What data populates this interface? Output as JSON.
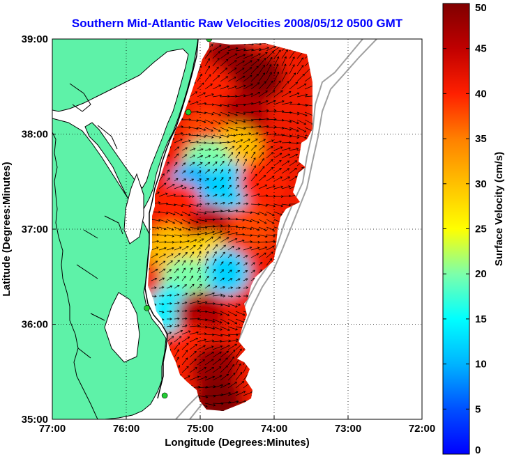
{
  "chart_data": {
    "type": "heatmap",
    "title": "Southern Mid-Atlantic Raw Velocities 2008/05/12 0500 GMT",
    "xlabel": "Longitude (Degrees:Minutes)",
    "ylabel": "Latitude (Degrees:Minutes)",
    "x_ticks": [
      {
        "value": -77,
        "label": "77:00"
      },
      {
        "value": -76,
        "label": "76:00"
      },
      {
        "value": -75,
        "label": "75:00"
      },
      {
        "value": -74,
        "label": "74:00"
      },
      {
        "value": -73,
        "label": "73:00"
      },
      {
        "value": -72,
        "label": "72:00"
      }
    ],
    "y_ticks": [
      {
        "value": 35,
        "label": "35:00"
      },
      {
        "value": 36,
        "label": "36:00"
      },
      {
        "value": 37,
        "label": "37:00"
      },
      {
        "value": 38,
        "label": "38:00"
      },
      {
        "value": 39,
        "label": "39:00"
      }
    ],
    "xlim": [
      -77,
      -72
    ],
    "ylim": [
      35,
      39
    ],
    "grid": true,
    "grid_style": "dotted",
    "colorbar": {
      "label": "Surface Velocity (cm/s)",
      "min": 0,
      "max": 50,
      "ticks": [
        0,
        5,
        10,
        15,
        20,
        25,
        30,
        35,
        40,
        45,
        50
      ],
      "colormap": "jet"
    },
    "land_color": "#5ef2a8",
    "station_color": "#22cc33",
    "stations": [
      {
        "lon": -74.88,
        "lat": 39.0
      },
      {
        "lon": -75.16,
        "lat": 38.23
      },
      {
        "lon": -75.72,
        "lat": 36.17
      },
      {
        "lon": -75.48,
        "lat": 35.25
      }
    ],
    "speed_field": [
      {
        "lon": -74.6,
        "lat": 38.8,
        "speed": 48
      },
      {
        "lon": -74.2,
        "lat": 38.6,
        "speed": 50
      },
      {
        "lon": -74.9,
        "lat": 38.5,
        "speed": 40
      },
      {
        "lon": -74.4,
        "lat": 38.2,
        "speed": 46
      },
      {
        "lon": -74.9,
        "lat": 38.0,
        "speed": 38
      },
      {
        "lon": -74.5,
        "lat": 37.85,
        "speed": 30
      },
      {
        "lon": -74.9,
        "lat": 37.7,
        "speed": 20
      },
      {
        "lon": -75.1,
        "lat": 37.45,
        "speed": 10
      },
      {
        "lon": -74.6,
        "lat": 37.45,
        "speed": 12
      },
      {
        "lon": -74.15,
        "lat": 37.5,
        "speed": 40
      },
      {
        "lon": -75.3,
        "lat": 37.25,
        "speed": 40
      },
      {
        "lon": -74.85,
        "lat": 37.0,
        "speed": 45
      },
      {
        "lon": -74.3,
        "lat": 37.0,
        "speed": 38
      },
      {
        "lon": -75.4,
        "lat": 36.8,
        "speed": 30
      },
      {
        "lon": -74.9,
        "lat": 36.7,
        "speed": 28
      },
      {
        "lon": -74.65,
        "lat": 36.55,
        "speed": 12
      },
      {
        "lon": -75.2,
        "lat": 36.45,
        "speed": 20
      },
      {
        "lon": -75.4,
        "lat": 36.15,
        "speed": 14
      },
      {
        "lon": -75.0,
        "lat": 36.1,
        "speed": 46
      },
      {
        "lon": -75.1,
        "lat": 35.75,
        "speed": 40
      },
      {
        "lon": -74.8,
        "lat": 35.55,
        "speed": 48
      },
      {
        "lon": -74.75,
        "lat": 35.2,
        "speed": 50
      }
    ]
  }
}
